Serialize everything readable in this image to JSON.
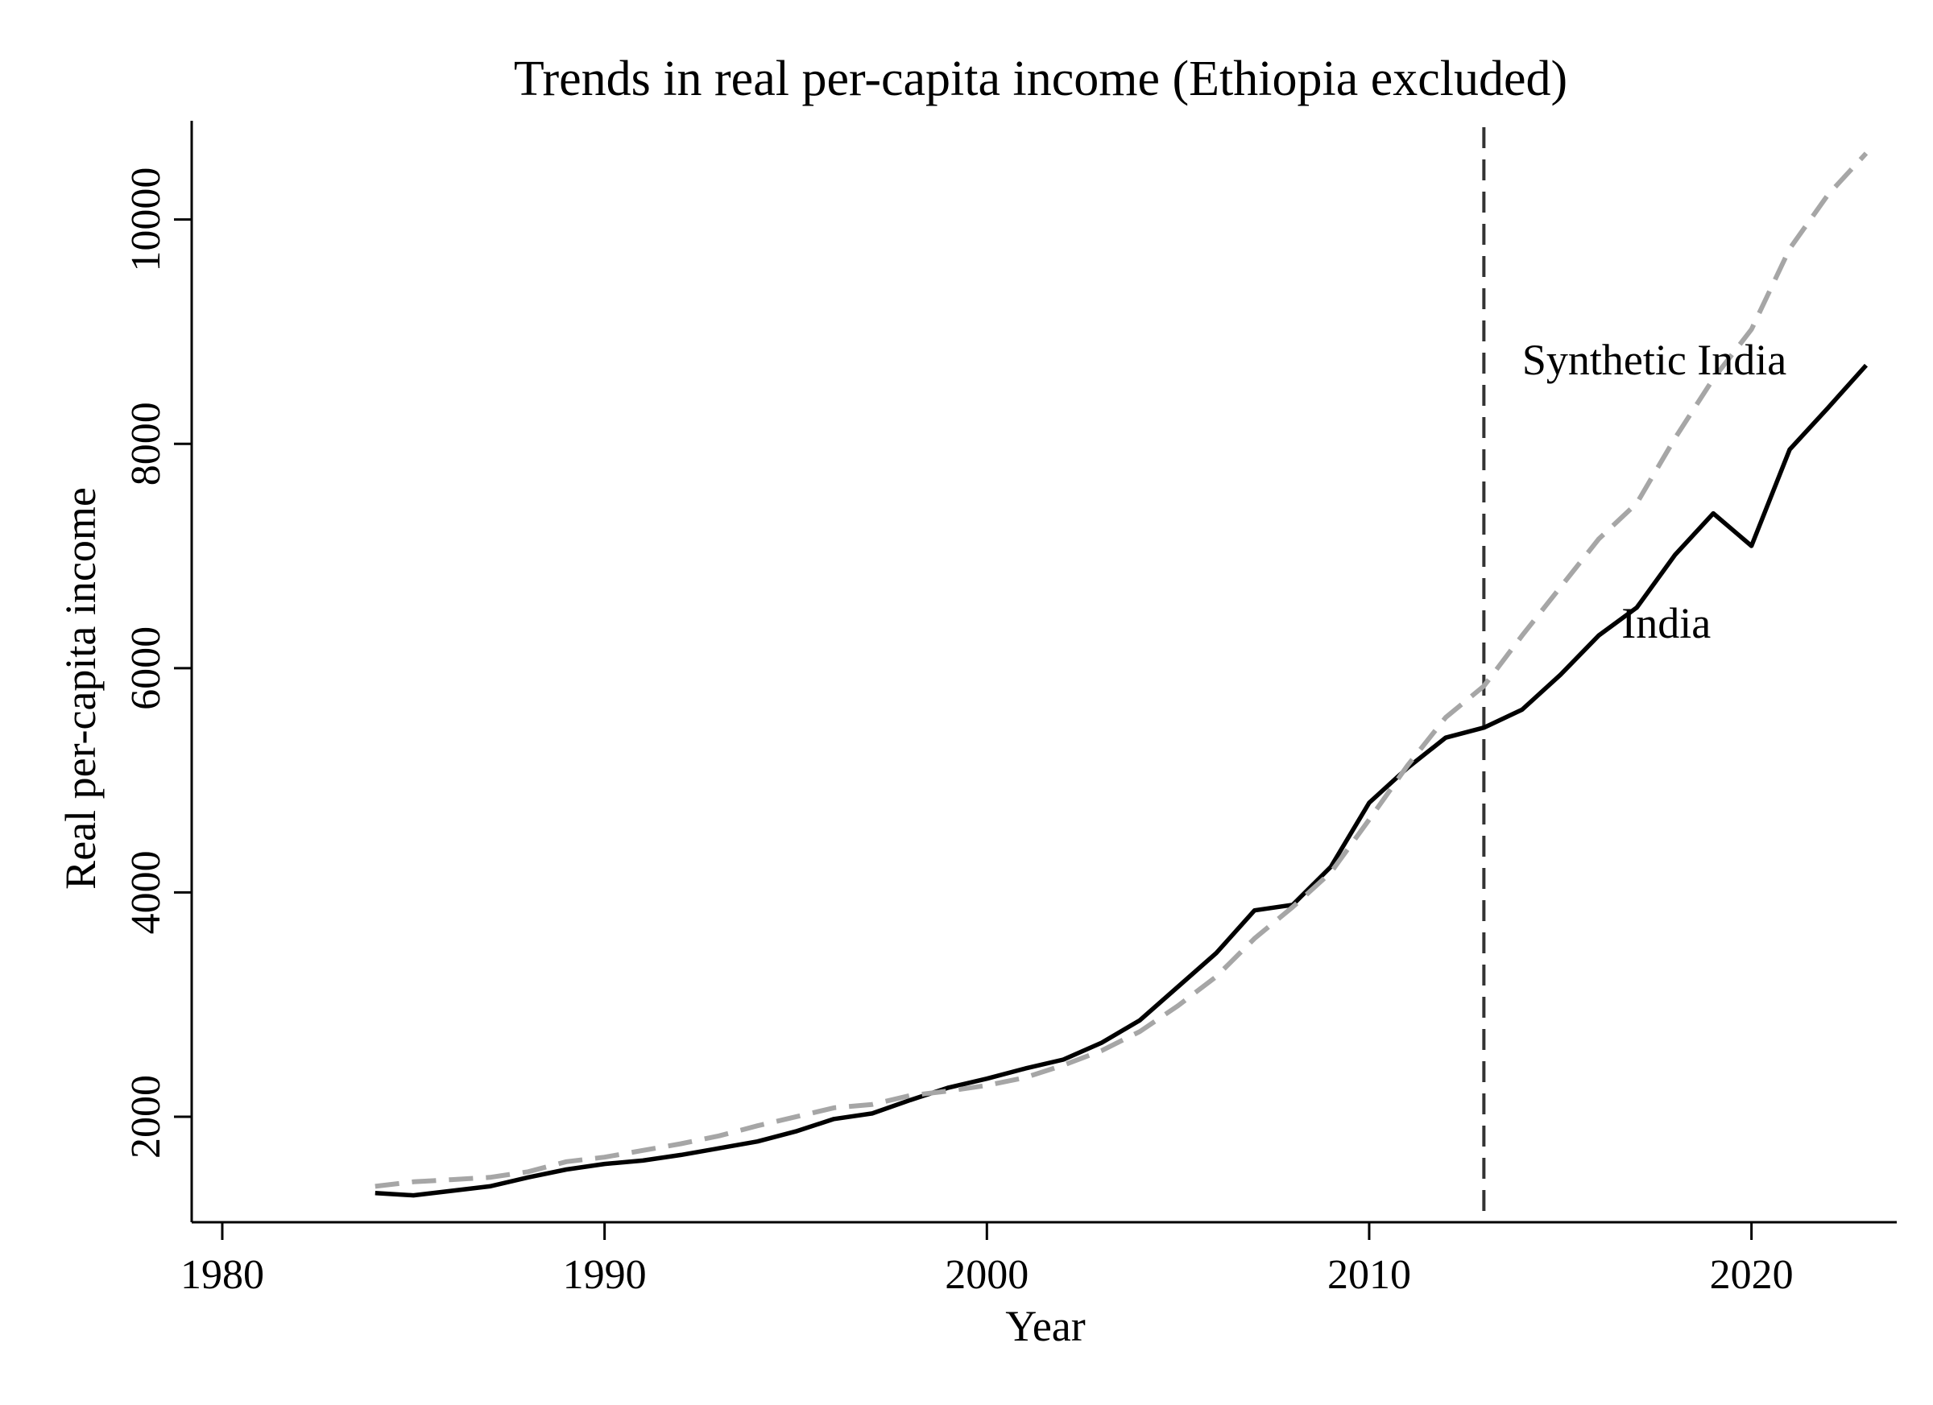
{
  "chart_data": {
    "type": "line",
    "title": "Trends in real per-capita income (Ethiopia excluded)",
    "xlabel": "Year",
    "ylabel": "Real per-capita income",
    "xlim": [
      1979.2,
      2023.8
    ],
    "ylim": [
      1060,
      10880
    ],
    "xticks": [
      1980,
      1990,
      2000,
      2010,
      2020
    ],
    "yticks": [
      2000,
      4000,
      6000,
      8000,
      10000
    ],
    "grid": false,
    "legend": "none",
    "reference_line": {
      "x": 2013,
      "style": "dashed"
    },
    "series": [
      {
        "name": "India",
        "style": "solid",
        "color": "#000000",
        "x": [
          1984,
          1985,
          1986,
          1987,
          1988,
          1989,
          1990,
          1991,
          1992,
          1993,
          1994,
          1995,
          1996,
          1997,
          1998,
          1999,
          2000,
          2001,
          2002,
          2003,
          2004,
          2005,
          2006,
          2007,
          2008,
          2009,
          2010,
          2011,
          2012,
          2013,
          2014,
          2015,
          2016,
          2017,
          2018,
          2019,
          2020,
          2021,
          2022,
          2023
        ],
        "y": [
          1320,
          1300,
          1340,
          1380,
          1460,
          1530,
          1580,
          1610,
          1660,
          1720,
          1780,
          1870,
          1980,
          2030,
          2150,
          2260,
          2340,
          2430,
          2510,
          2660,
          2860,
          3160,
          3460,
          3840,
          3890,
          4230,
          4800,
          5110,
          5380,
          5470,
          5630,
          5940,
          6290,
          6540,
          7010,
          7380,
          7090,
          7950,
          8320,
          8700
        ]
      },
      {
        "name": "Synthetic India",
        "style": "dashed",
        "color": "#a6a6a6",
        "x": [
          1984,
          1985,
          1986,
          1987,
          1988,
          1989,
          1990,
          1991,
          1992,
          1993,
          1994,
          1995,
          1996,
          1997,
          1998,
          1999,
          2000,
          2001,
          2002,
          2003,
          2004,
          2005,
          2006,
          2007,
          2008,
          2009,
          2010,
          2011,
          2012,
          2013,
          2014,
          2015,
          2016,
          2017,
          2018,
          2019,
          2020,
          2021,
          2022,
          2023
        ],
        "y": [
          1380,
          1420,
          1440,
          1460,
          1510,
          1600,
          1640,
          1700,
          1760,
          1830,
          1920,
          2000,
          2080,
          2110,
          2190,
          2230,
          2280,
          2350,
          2460,
          2590,
          2760,
          2990,
          3250,
          3590,
          3870,
          4180,
          4650,
          5130,
          5560,
          5840,
          6290,
          6720,
          7150,
          7470,
          8050,
          8580,
          9020,
          9740,
          10220,
          10590
        ]
      }
    ],
    "annotations": [
      {
        "text": "Synthetic India",
        "x": 2014,
        "y": 8620,
        "series": "Synthetic India"
      },
      {
        "text": "India",
        "x": 2016.6,
        "y": 6270,
        "series": "India"
      }
    ]
  }
}
